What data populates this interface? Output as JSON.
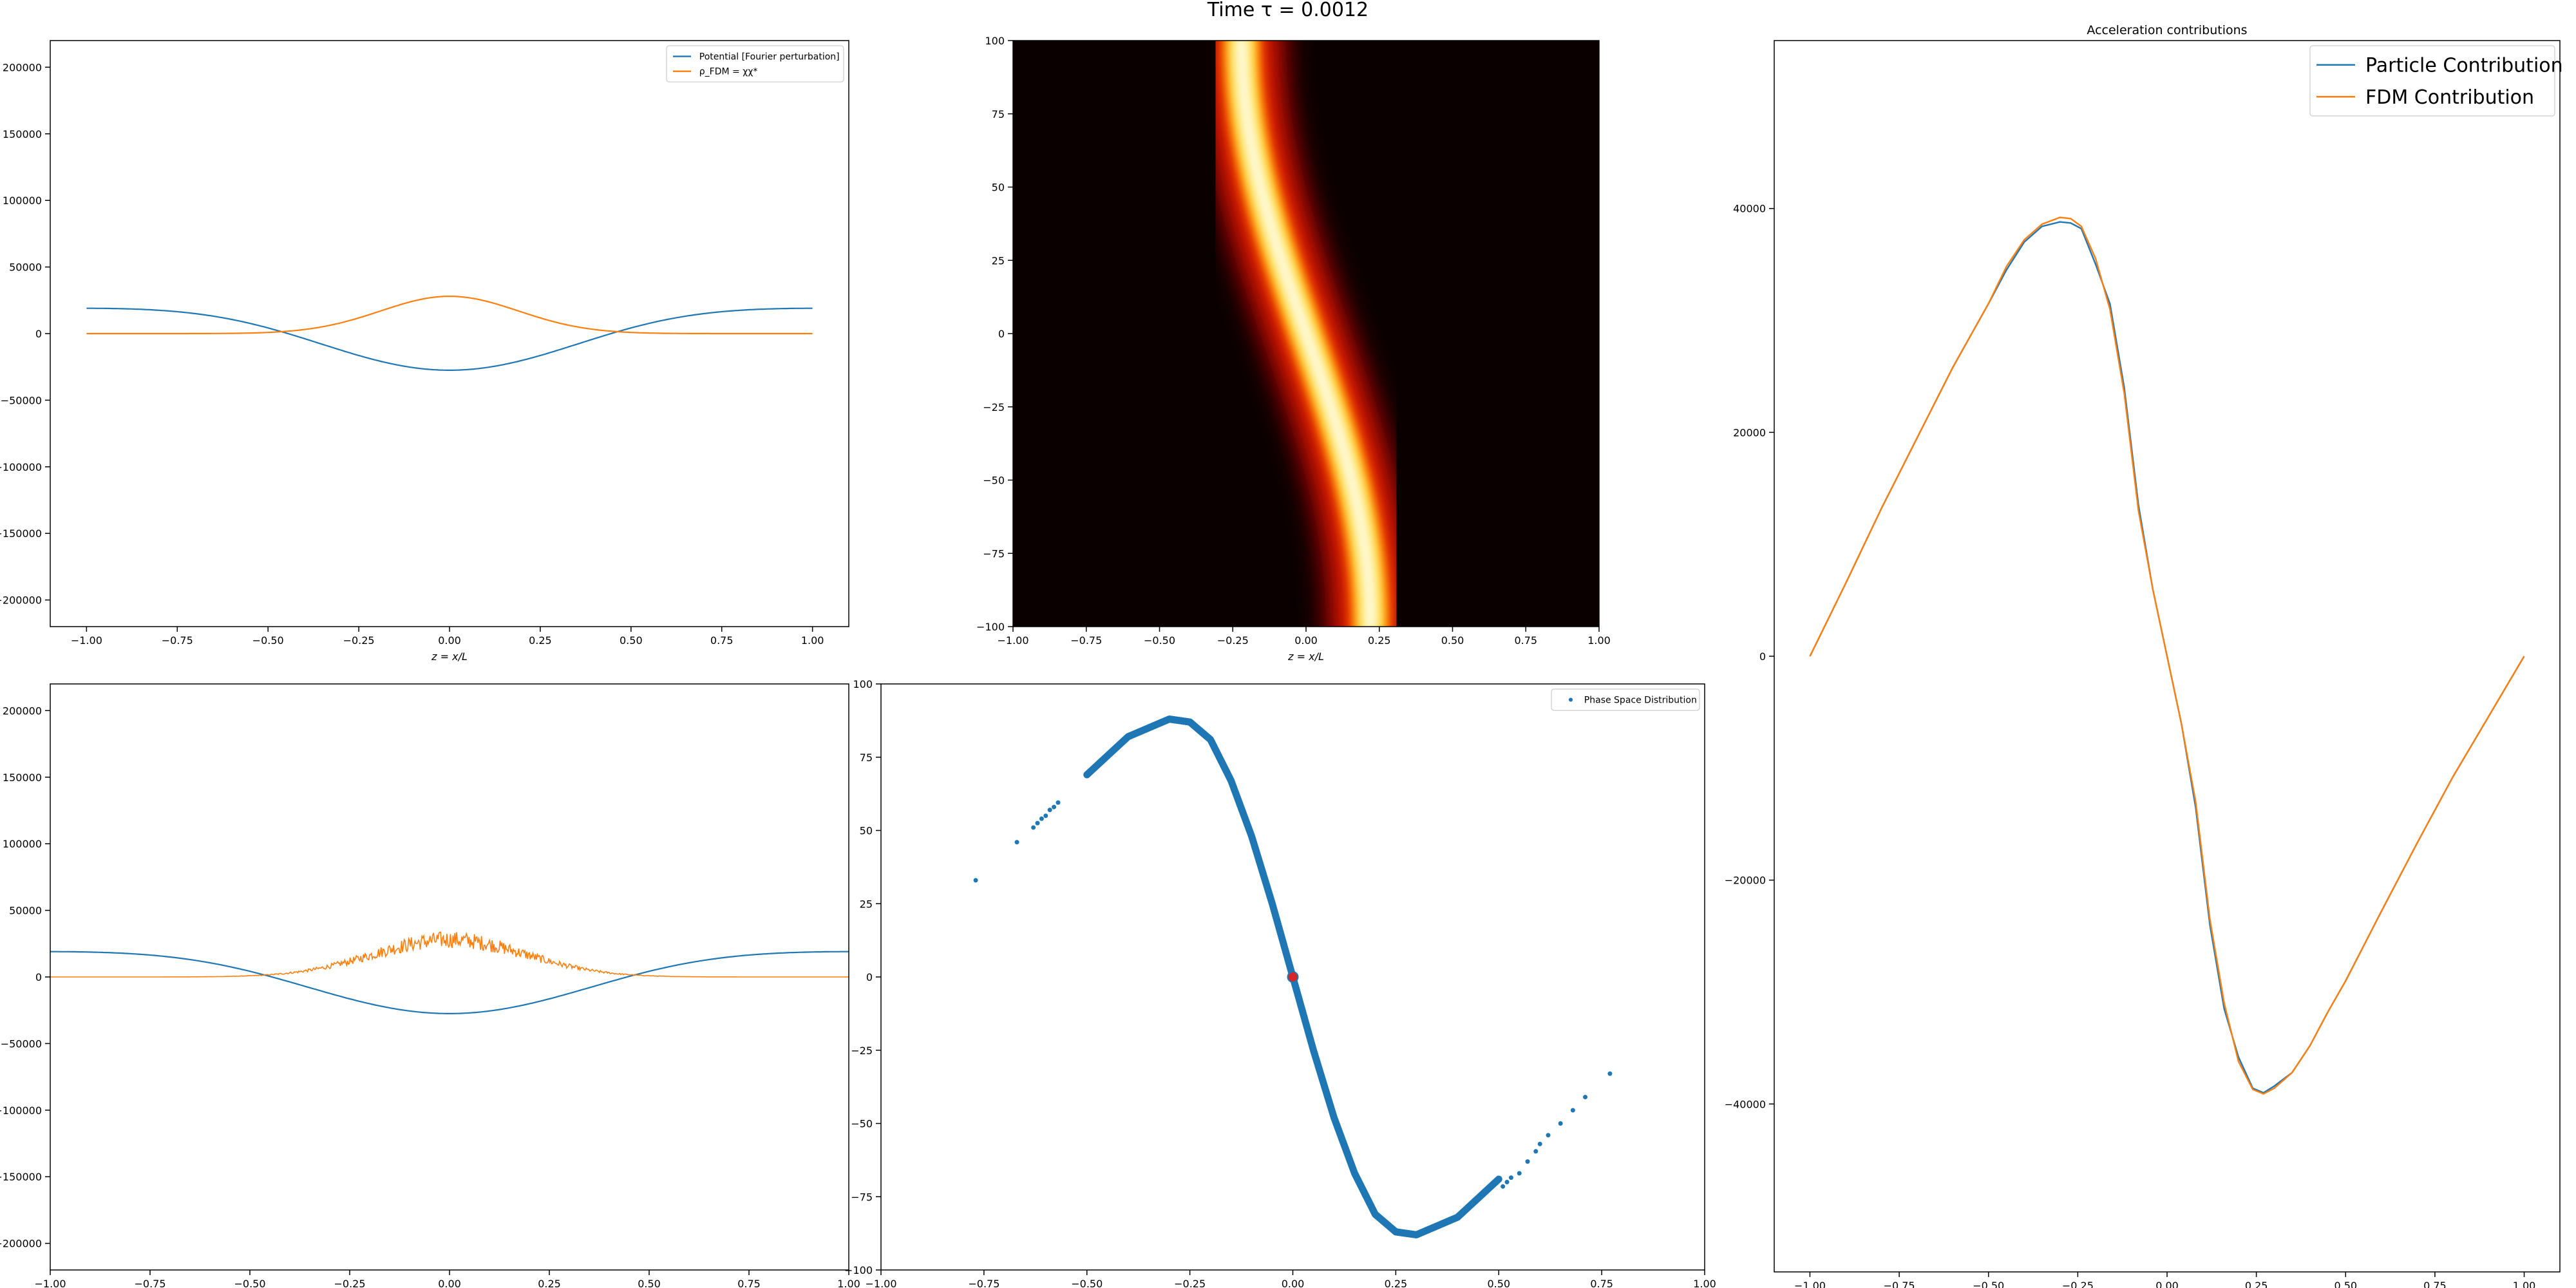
{
  "figure": {
    "suptitle": "Time τ = 0.0012"
  },
  "colors": {
    "blue": "#1f77b4",
    "orange": "#ff7f0e",
    "marker_red": "#d62728"
  },
  "chart_data": [
    {
      "id": "top-left",
      "type": "line",
      "xlabel": "z = x/L",
      "xlim": [
        -1.1,
        1.1
      ],
      "ylim": [
        -220000,
        220000
      ],
      "xticks": [
        "−1.00",
        "−0.75",
        "−0.50",
        "−0.25",
        "0.00",
        "0.25",
        "0.50",
        "0.75",
        "1.00"
      ],
      "yticks": [
        "−200000",
        "−150000",
        "−100000",
        "−50000",
        "0",
        "50000",
        "100000",
        "150000",
        "200000"
      ],
      "legend_position": "top-right",
      "series": [
        {
          "name": "Potential [Fourier perturbation]",
          "color": "#1f77b4",
          "shape": "cos",
          "amplitude": 27500,
          "offset": -4000,
          "x_range": [
            -1,
            1
          ]
        },
        {
          "name": "ρ_FDM = χχ*",
          "color": "#ff7f0e",
          "shape": "gauss",
          "peak": 28000,
          "sigma": 0.19,
          "x_range": [
            -1,
            1
          ]
        }
      ]
    },
    {
      "id": "top-middle",
      "type": "heatmap",
      "xlabel": "z = x/L",
      "xlim": [
        -1,
        1
      ],
      "ylim": [
        -100,
        100
      ],
      "xticks": [
        "−1.00",
        "−0.75",
        "−0.50",
        "−0.25",
        "0.00",
        "0.25",
        "0.50",
        "0.75",
        "1.00"
      ],
      "yticks": [
        "−100",
        "−75",
        "−50",
        "−25",
        "0",
        "25",
        "50",
        "75",
        "100"
      ],
      "colormap": "hot"
    },
    {
      "id": "top-right",
      "type": "line",
      "title": "Acceleration contributions",
      "xlim": [
        -1.1,
        1.1
      ],
      "ylim": [
        -55000,
        55000
      ],
      "xticks": [
        "−1.00",
        "−0.75",
        "−0.50",
        "−0.25",
        "0.00",
        "0.25",
        "0.50",
        "0.75",
        "1.00"
      ],
      "yticks": [
        "−40000",
        "−20000",
        "0",
        "20000",
        "40000"
      ],
      "legend_position": "top-right",
      "series": [
        {
          "name": "Particle Contribution",
          "color": "#1f77b4",
          "x": [
            -1.0,
            -0.9,
            -0.8,
            -0.7,
            -0.6,
            -0.5,
            -0.45,
            -0.4,
            -0.35,
            -0.3,
            -0.27,
            -0.24,
            -0.2,
            -0.16,
            -0.12,
            -0.08,
            -0.04,
            0.0,
            0.04,
            0.08,
            0.12,
            0.16,
            0.2,
            0.24,
            0.27,
            0.3,
            0.35,
            0.4,
            0.45,
            0.5,
            0.6,
            0.7,
            0.8,
            0.9,
            1.0
          ],
          "y": [
            0,
            6500,
            13200,
            19500,
            25800,
            31500,
            34500,
            37000,
            38400,
            38800,
            38700,
            38200,
            35000,
            31500,
            24000,
            13500,
            6000,
            0,
            -6000,
            -13500,
            -24000,
            -31500,
            -35800,
            -38600,
            -39000,
            -38400,
            -37200,
            -34800,
            -31800,
            -29000,
            -22800,
            -16700,
            -10800,
            -5400,
            0
          ]
        },
        {
          "name": "FDM Contribution",
          "color": "#ff7f0e",
          "x": [
            -1.0,
            -0.9,
            -0.8,
            -0.7,
            -0.6,
            -0.5,
            -0.45,
            -0.4,
            -0.35,
            -0.3,
            -0.27,
            -0.24,
            -0.2,
            -0.16,
            -0.12,
            -0.08,
            -0.04,
            0.0,
            0.04,
            0.08,
            0.12,
            0.16,
            0.2,
            0.24,
            0.27,
            0.3,
            0.35,
            0.4,
            0.45,
            0.5,
            0.6,
            0.7,
            0.8,
            0.9,
            1.0
          ],
          "y": [
            0,
            6500,
            13200,
            19500,
            25800,
            31500,
            34800,
            37200,
            38600,
            39200,
            39100,
            38400,
            35500,
            31000,
            23500,
            13000,
            6000,
            0,
            -6000,
            -13000,
            -23500,
            -31000,
            -36200,
            -38700,
            -39100,
            -38600,
            -37200,
            -34800,
            -31800,
            -29000,
            -22800,
            -16700,
            -10800,
            -5400,
            0
          ]
        }
      ]
    },
    {
      "id": "bottom-left",
      "type": "line",
      "xlim": [
        -1,
        1
      ],
      "ylim": [
        -220000,
        220000
      ],
      "xticks": [
        "−1.00",
        "−0.75",
        "−0.50",
        "−0.25",
        "0.00",
        "0.25",
        "0.50",
        "0.75",
        "1.00"
      ],
      "yticks": [
        "−200000",
        "−150000",
        "−100000",
        "−50000",
        "0",
        "50000",
        "100000",
        "150000",
        "200000"
      ],
      "series": [
        {
          "color": "#1f77b4",
          "shape": "cos",
          "amplitude": 27500,
          "offset": -4000,
          "x_range": [
            -1,
            1
          ]
        },
        {
          "color": "#ff7f0e",
          "shape": "gauss-noisy",
          "peak": 28000,
          "sigma": 0.19,
          "x_range": [
            -1,
            1
          ]
        }
      ]
    },
    {
      "id": "bottom-middle",
      "type": "scatter",
      "xlim": [
        -1,
        1
      ],
      "ylim": [
        -100,
        100
      ],
      "xticks": [
        "−1.00",
        "−0.75",
        "−0.50",
        "−0.25",
        "0.00",
        "0.25",
        "0.50",
        "0.75",
        "1.00"
      ],
      "yticks": [
        "−100",
        "−75",
        "−50",
        "−25",
        "0",
        "25",
        "50",
        "75",
        "100"
      ],
      "legend_position": "top-right",
      "series": [
        {
          "name": "Phase Space Distribution",
          "color": "#1f77b4",
          "x": [
            -0.5,
            -0.4,
            -0.3,
            -0.25,
            -0.2,
            -0.15,
            -0.1,
            -0.05,
            0.0,
            0.05,
            0.1,
            0.15,
            0.2,
            0.25,
            0.3,
            0.4,
            0.5
          ],
          "y": [
            69,
            82,
            88,
            87,
            81,
            67,
            48,
            25,
            0,
            -25,
            -48,
            -67,
            -81,
            -87,
            -88,
            -82,
            -69
          ],
          "sparse_x": [
            -0.77,
            -0.67,
            -0.63,
            -0.62,
            -0.61,
            -0.6,
            -0.59,
            -0.58,
            -0.57,
            0.51,
            0.52,
            0.53,
            0.55,
            0.57,
            0.59,
            0.6,
            0.62,
            0.65,
            0.68,
            0.71,
            0.77
          ],
          "sparse_y": [
            33,
            46,
            51,
            52.5,
            54,
            55,
            57,
            58,
            59.5,
            -71.5,
            -70,
            -68.5,
            -67,
            -63,
            -59.5,
            -57,
            -54,
            -50,
            -45.5,
            -41,
            -33
          ],
          "highlight": {
            "x": 0.0,
            "y": 0.0,
            "color": "#d62728"
          }
        }
      ]
    }
  ]
}
